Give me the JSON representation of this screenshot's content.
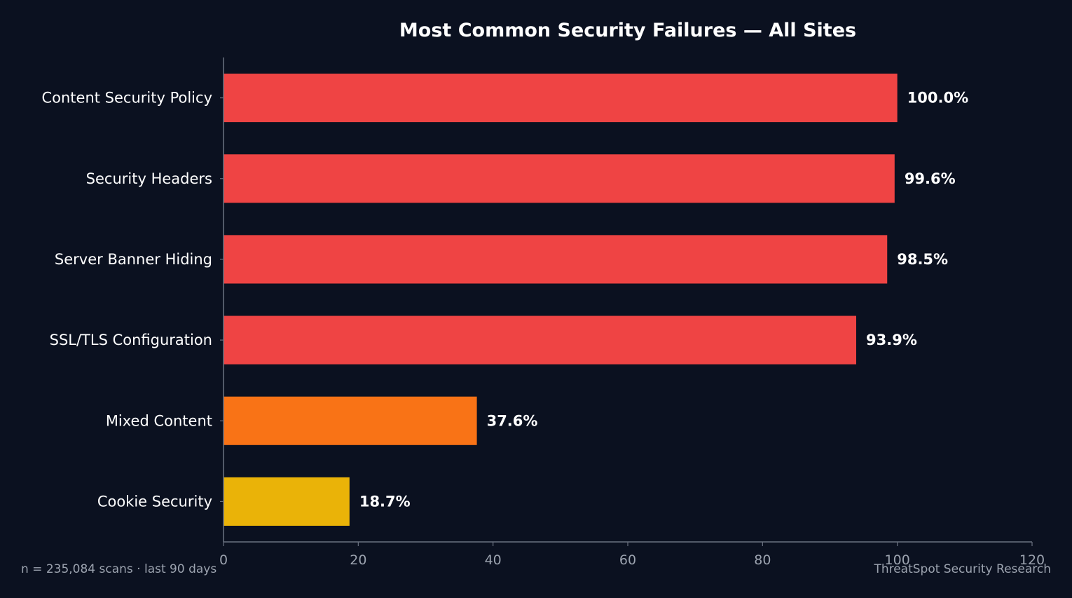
{
  "chart_data": {
    "type": "bar",
    "orientation": "horizontal",
    "title": "Most Common Security Failures — All Sites",
    "xlabel": "",
    "ylabel": "",
    "xlim": [
      0,
      120
    ],
    "x_ticks": [
      0,
      20,
      40,
      60,
      80,
      100,
      120
    ],
    "grid": false,
    "categories": [
      "Content Security Policy",
      "Security Headers",
      "Server Banner Hiding",
      "SSL/TLS Configuration",
      "Mixed Content",
      "Cookie Security"
    ],
    "values": [
      100.0,
      99.6,
      98.5,
      93.9,
      37.6,
      18.7
    ],
    "data_labels": [
      "100.0%",
      "99.6%",
      "98.5%",
      "93.9%",
      "37.6%",
      "18.7%"
    ],
    "bar_colors": [
      "#ef4444",
      "#ef4444",
      "#ef4444",
      "#ef4444",
      "#f97316",
      "#eab308"
    ]
  },
  "footer": {
    "left": "n = 235,084 scans · last 90 days",
    "right": "ThreatSpot Security Research"
  },
  "colors": {
    "background": "#0b1120",
    "axis": "#6b7280",
    "tick_text": "#9ca3af",
    "text": "#ffffff"
  }
}
